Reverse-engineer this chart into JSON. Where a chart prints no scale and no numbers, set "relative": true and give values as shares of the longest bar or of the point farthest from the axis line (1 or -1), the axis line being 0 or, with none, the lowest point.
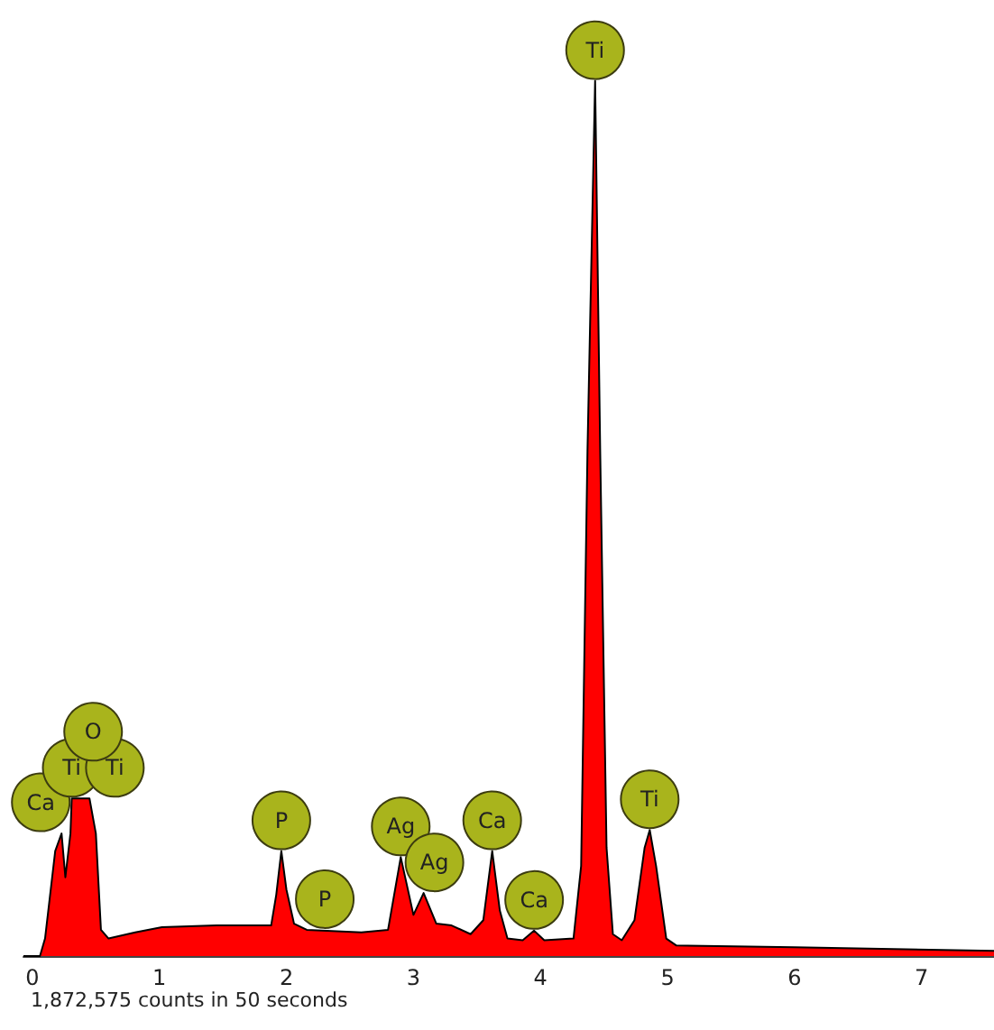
{
  "chart_data": {
    "type": "area",
    "relative": true,
    "x": [
      -0.07,
      0.06,
      0.1,
      0.18,
      0.23,
      0.26,
      0.3,
      0.31,
      0.38,
      0.45,
      0.5,
      0.54,
      0.6,
      0.81,
      1.02,
      1.45,
      1.88,
      1.92,
      1.96,
      2.0,
      2.06,
      2.16,
      2.59,
      2.8,
      2.9,
      3.0,
      3.08,
      3.18,
      3.3,
      3.45,
      3.55,
      3.62,
      3.68,
      3.74,
      3.86,
      3.95,
      4.03,
      4.26,
      4.32,
      4.37,
      4.43,
      4.47,
      4.52,
      4.57,
      4.64,
      4.74,
      4.82,
      4.86,
      4.91,
      4.99,
      5.07,
      6.0,
      7.57
    ],
    "series": [
      {
        "color": "#ff0000",
        "values": [
          0,
          0,
          0.02,
          0.12,
          0.14,
          0.09,
          0.14,
          0.18,
          0.18,
          0.18,
          0.14,
          0.03,
          0.02,
          0.027,
          0.033,
          0.035,
          0.035,
          0.07,
          0.12,
          0.076,
          0.037,
          0.03,
          0.027,
          0.03,
          0.113,
          0.047,
          0.072,
          0.037,
          0.035,
          0.025,
          0.041,
          0.12,
          0.052,
          0.02,
          0.018,
          0.029,
          0.018,
          0.02,
          0.103,
          0.577,
          1,
          0.577,
          0.124,
          0.025,
          0.018,
          0.041,
          0.124,
          0.144,
          0.103,
          0.02,
          0.012,
          0.01,
          0.006
        ]
      }
    ],
    "xlim": [
      -0.07,
      7.57
    ],
    "xticks": [
      0,
      1,
      2,
      3,
      4,
      5,
      6,
      7
    ],
    "annotations": [
      {
        "text": "Ca",
        "x": 0.18,
        "y": 0.12
      },
      {
        "text": "Ti",
        "x": 0.31,
        "y": 0.18
      },
      {
        "text": "Ti",
        "x": 0.38,
        "y": 0.18
      },
      {
        "text": "O",
        "x": 0.45,
        "y": 0.18
      },
      {
        "text": "P",
        "x": 1.96,
        "y": 0.12
      },
      {
        "text": "P",
        "x": 2.16,
        "y": 0.03
      },
      {
        "text": "Ag",
        "x": 2.9,
        "y": 0.113
      },
      {
        "text": "Ag",
        "x": 3.08,
        "y": 0.072
      },
      {
        "text": "Ca",
        "x": 3.62,
        "y": 0.12
      },
      {
        "text": "Ca",
        "x": 3.95,
        "y": 0.029
      },
      {
        "text": "Ti",
        "x": 4.43,
        "y": 1
      },
      {
        "text": "Ti",
        "x": 4.86,
        "y": 0.144
      },
      "1,872,575 counts in 50 seconds"
    ]
  }
}
